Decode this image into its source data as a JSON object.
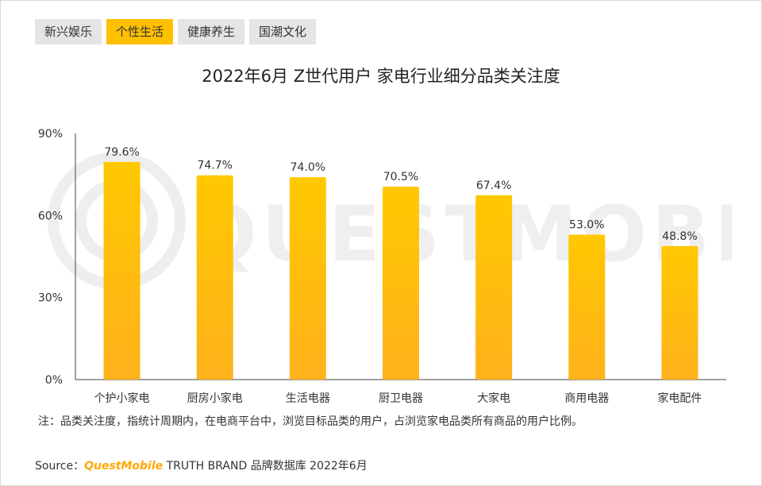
{
  "tabs": [
    {
      "label": "新兴娱乐",
      "active": false
    },
    {
      "label": "个性生活",
      "active": true
    },
    {
      "label": "健康养生",
      "active": false
    },
    {
      "label": "国潮文化",
      "active": false
    }
  ],
  "watermark_text": "QUESTMOBILE",
  "chart_data": {
    "type": "bar",
    "title": "2022年6月 Z世代用户 家电行业细分品类关注度",
    "categories": [
      "个护小家电",
      "厨房小家电",
      "生活电器",
      "厨卫电器",
      "大家电",
      "商用电器",
      "家电配件"
    ],
    "values": [
      79.6,
      74.7,
      74.0,
      70.5,
      67.4,
      53.0,
      48.8
    ],
    "value_labels": [
      "79.6%",
      "74.7%",
      "74.0%",
      "70.5%",
      "67.4%",
      "53.0%",
      "48.8%"
    ],
    "y_ticks": [
      0,
      30,
      60,
      90
    ],
    "y_tick_labels": [
      "0%",
      "30%",
      "60%",
      "90%"
    ],
    "ylim": [
      0,
      90
    ],
    "bar_color_top": "#ffc800",
    "bar_color_bottom": "#ffb21c",
    "xlabel": "",
    "ylabel": "",
    "grid": false
  },
  "note": "注：品类关注度，指统计周期内，在电商平台中，浏览目标品类的用户，占浏览家电品类所有商品的用户比例。",
  "source": {
    "prefix": "Source：",
    "brand": "QuestMobile",
    "suffix": " TRUTH BRAND 品牌数据库 2022年6月"
  }
}
